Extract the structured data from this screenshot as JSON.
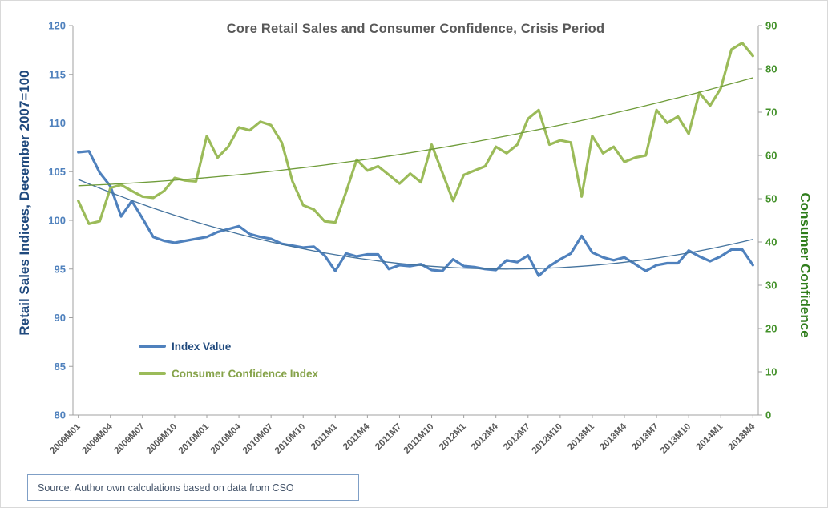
{
  "title": "Core Retail Sales and Consumer Confidence, Crisis Period",
  "source_note": "Source: Author own calculations based on data from CSO",
  "left_axis": {
    "title": "Retail Sales  Indices, December 2007=100",
    "ticks": [
      80,
      85,
      90,
      95,
      100,
      105,
      110,
      115,
      120
    ]
  },
  "right_axis": {
    "title": "Consumer Confidence",
    "ticks": [
      0,
      10,
      20,
      30,
      40,
      50,
      60,
      70,
      80,
      90
    ]
  },
  "legend": [
    {
      "label": "Index Value",
      "color": "#4f81bd",
      "text_color": "#1f497d"
    },
    {
      "label": "Consumer Confidence Index",
      "color": "#9bbb59",
      "text_color": "#86a34a"
    }
  ],
  "colors": {
    "title_text": "#595959",
    "left_axis_text": "#4f81bd",
    "left_axis_title": "#1f497d",
    "right_axis_text": "#43912a",
    "right_axis_title": "#2f7d1b",
    "x_axis_text": "#595959",
    "axis_line": "#a0a0a0",
    "source_text": "#44546a",
    "source_border": "#7f9fc6"
  },
  "chart_data": {
    "type": "line",
    "title": "Core Retail Sales and Consumer Confidence, Crisis Period",
    "xlabel": "",
    "ylabel_left": "Retail Sales Indices, December 2007=100",
    "ylabel_right": "Consumer Confidence",
    "left_ylim": [
      80,
      120
    ],
    "right_ylim": [
      0,
      90
    ],
    "grid": false,
    "legend_position": "inside-left-bottom",
    "x_tick_every": 3,
    "x_tick_labels": [
      "2009M01",
      "2009M04",
      "2009M07",
      "2009M10",
      "2010M01",
      "2010M04",
      "2010M07",
      "2010M10",
      "2011M1",
      "2011M4",
      "2011M7",
      "2011M10",
      "2012M1",
      "2012M4",
      "2012M7",
      "2012M10",
      "2013M1",
      "2013M4",
      "2013M7",
      "2013M10",
      "2014M1",
      "2013M4"
    ],
    "series": [
      {
        "name": "Index Value",
        "axis": "left",
        "color": "#4f81bd",
        "values": [
          107.0,
          107.1,
          104.9,
          103.5,
          100.4,
          102.0,
          100.2,
          98.3,
          97.9,
          97.7,
          97.9,
          98.1,
          98.3,
          98.8,
          99.1,
          99.4,
          98.6,
          98.3,
          98.1,
          97.6,
          97.4,
          97.2,
          97.3,
          96.4,
          94.8,
          96.6,
          96.3,
          96.5,
          96.5,
          95.0,
          95.4,
          95.3,
          95.5,
          94.9,
          94.8,
          96.0,
          95.3,
          95.2,
          95.0,
          94.9,
          95.9,
          95.7,
          96.4,
          94.3,
          95.3,
          96.0,
          96.6,
          98.4,
          96.7,
          96.2,
          95.9,
          96.2,
          95.5,
          94.8,
          95.4,
          95.6,
          95.6,
          96.9,
          96.3,
          95.8,
          96.3,
          97.0,
          97.0,
          95.4
        ]
      },
      {
        "name": "Consumer Confidence Index",
        "axis": "right",
        "color": "#9bbb59",
        "values": [
          49.5,
          44.2,
          44.8,
          52.5,
          53.2,
          51.8,
          50.5,
          50.2,
          51.8,
          54.8,
          54.2,
          54.0,
          64.5,
          59.5,
          62.0,
          66.5,
          65.8,
          67.8,
          67.0,
          63.0,
          54.0,
          48.5,
          47.5,
          44.8,
          44.5,
          51.5,
          59.0,
          56.5,
          57.5,
          55.5,
          53.5,
          55.8,
          53.8,
          62.5,
          56.0,
          49.5,
          55.5,
          56.5,
          57.5,
          62.0,
          60.5,
          62.5,
          68.5,
          70.5,
          62.5,
          63.5,
          63.0,
          50.5,
          64.5,
          60.5,
          62.0,
          58.5,
          59.5,
          60.0,
          70.5,
          67.5,
          69.0,
          65.0,
          74.5,
          71.5,
          75.5,
          84.5,
          86.0,
          83.0
        ]
      }
    ],
    "trendlines": [
      {
        "series": "Index Value",
        "axis": "left",
        "color": "#44739e",
        "quadratic": {
          "a2": 0.00575,
          "a1": -0.46,
          "a0": 104.2
        }
      },
      {
        "series": "Consumer Confidence Index",
        "axis": "right",
        "color": "#6f9c3a",
        "quadratic": {
          "a2": 0.0047,
          "a1": 0.1,
          "a0": 53.0
        }
      }
    ]
  }
}
